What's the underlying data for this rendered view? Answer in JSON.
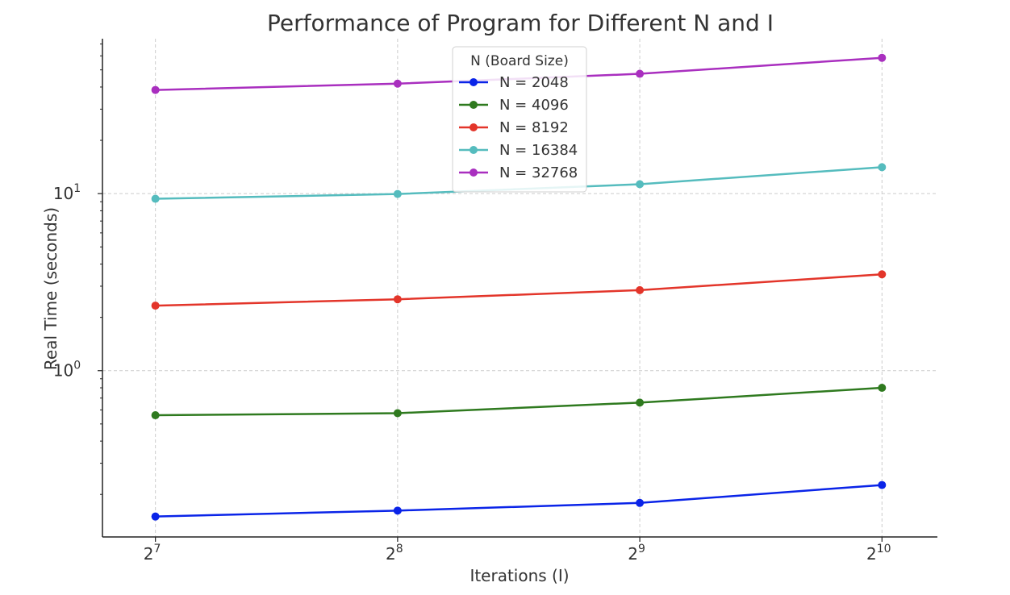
{
  "chart_data": {
    "type": "line",
    "title": "Performance of Program for Different N and I",
    "xlabel": "Iterations (I)",
    "ylabel": "Real Time (seconds)",
    "xscale": "log2",
    "yscale": "log10",
    "x": [
      128,
      256,
      512,
      1024
    ],
    "xticks": [
      {
        "value": 128,
        "base": "2",
        "exp": "7"
      },
      {
        "value": 256,
        "base": "2",
        "exp": "8"
      },
      {
        "value": 512,
        "base": "2",
        "exp": "9"
      },
      {
        "value": 1024,
        "base": "2",
        "exp": "10"
      }
    ],
    "yticks": [
      {
        "value": 1,
        "base": "10",
        "exp": "0"
      },
      {
        "value": 10,
        "base": "10",
        "exp": "1"
      }
    ],
    "xlim": [
      110,
      1200
    ],
    "ylim": [
      0.115,
      75
    ],
    "grid": true,
    "legend": {
      "title": "N (Board Size)",
      "placement": "top-center"
    },
    "series": [
      {
        "name": "N = 2048",
        "color": "#0a24e8",
        "values": [
          0.15,
          0.162,
          0.179,
          0.226
        ]
      },
      {
        "name": "N = 4096",
        "color": "#2f7a1f",
        "values": [
          0.56,
          0.575,
          0.66,
          0.8
        ]
      },
      {
        "name": "N = 8192",
        "color": "#e3352a",
        "values": [
          2.33,
          2.53,
          2.85,
          3.5
        ]
      },
      {
        "name": "N = 16384",
        "color": "#55bcbe",
        "values": [
          9.35,
          9.95,
          11.3,
          14.1
        ]
      },
      {
        "name": "N = 32768",
        "color": "#a92fbf",
        "values": [
          38.5,
          41.8,
          47.5,
          58.5
        ]
      }
    ]
  }
}
